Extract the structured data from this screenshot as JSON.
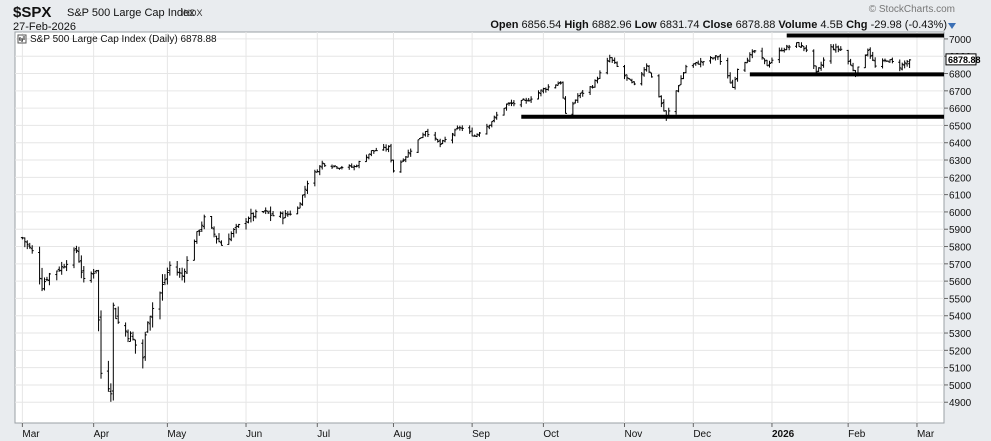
{
  "header": {
    "symbol": "$SPX",
    "name": "S&P 500 Large Cap Index",
    "exchange": "INDX",
    "date": "27-Feb-2026",
    "watermark": "© StockCharts.com",
    "open_label": "Open",
    "open": "6856.54",
    "high_label": "High",
    "high": "6882.96",
    "low_label": "Low",
    "low": "6831.74",
    "close_label": "Close",
    "close": "6878.88",
    "volume_label": "Volume",
    "volume": "4.5B",
    "chg_label": "Chg",
    "chg": "-29.98 (-0.43%)"
  },
  "colors": {
    "price_bar": "#000000",
    "grid": "#e6e6e6",
    "panel": "#ffffff",
    "page": "#e9ecef",
    "caret": "#3b6fb5"
  },
  "chart_data": {
    "type": "ohlc",
    "legend": "S&P 500 Large Cap Index (Daily) 6878.88",
    "last_price_label": "6878.88",
    "ylim": [
      4780,
      7040
    ],
    "y_ticks": [
      4900,
      5000,
      5100,
      5200,
      5300,
      5400,
      5500,
      5600,
      5700,
      5800,
      5900,
      6000,
      6100,
      6200,
      6300,
      6400,
      6500,
      6600,
      6700,
      6800,
      6900,
      7000
    ],
    "x_start": "2025-02-28",
    "x_end": "2026-03-13",
    "x_ticks": [
      {
        "label": "Mar",
        "date": "2025-03-03",
        "bold": false
      },
      {
        "label": "Apr",
        "date": "2025-04-01",
        "bold": false
      },
      {
        "label": "May",
        "date": "2025-05-01",
        "bold": false
      },
      {
        "label": "Jun",
        "date": "2025-06-02",
        "bold": false
      },
      {
        "label": "Jul",
        "date": "2025-07-01",
        "bold": false
      },
      {
        "label": "Aug",
        "date": "2025-08-01",
        "bold": false
      },
      {
        "label": "Sep",
        "date": "2025-09-02",
        "bold": false
      },
      {
        "label": "Oct",
        "date": "2025-10-01",
        "bold": false
      },
      {
        "label": "Nov",
        "date": "2025-11-03",
        "bold": false
      },
      {
        "label": "Dec",
        "date": "2025-12-01",
        "bold": false
      },
      {
        "label": "2026",
        "date": "2026-01-02",
        "bold": true
      },
      {
        "label": "Feb",
        "date": "2026-02-02",
        "bold": false
      },
      {
        "label": "Mar",
        "date": "2026-03-02",
        "bold": false
      }
    ],
    "closes": [
      [
        "2025-03-03",
        5850
      ],
      [
        "2025-03-07",
        5770
      ],
      [
        "2025-03-11",
        5580
      ],
      [
        "2025-03-14",
        5640
      ],
      [
        "2025-03-19",
        5680
      ],
      [
        "2025-03-25",
        5780
      ],
      [
        "2025-03-28",
        5600
      ],
      [
        "2025-04-02",
        5670
      ],
      [
        "2025-04-04",
        5070
      ],
      [
        "2025-04-08",
        4980
      ],
      [
        "2025-04-09",
        5450
      ],
      [
        "2025-04-11",
        5360
      ],
      [
        "2025-04-16",
        5280
      ],
      [
        "2025-04-21",
        5160
      ],
      [
        "2025-04-23",
        5390
      ],
      [
        "2025-04-28",
        5530
      ],
      [
        "2025-05-02",
        5690
      ],
      [
        "2025-05-07",
        5630
      ],
      [
        "2025-05-12",
        5840
      ],
      [
        "2025-05-16",
        5960
      ],
      [
        "2025-05-21",
        5850
      ],
      [
        "2025-05-23",
        5810
      ],
      [
        "2025-05-28",
        5890
      ],
      [
        "2025-06-03",
        5970
      ],
      [
        "2025-06-09",
        6000
      ],
      [
        "2025-06-13",
        5980
      ],
      [
        "2025-06-18",
        5980
      ],
      [
        "2025-06-23",
        6020
      ],
      [
        "2025-06-27",
        6170
      ],
      [
        "2025-07-03",
        6280
      ],
      [
        "2025-07-10",
        6260
      ],
      [
        "2025-07-16",
        6260
      ],
      [
        "2025-07-23",
        6350
      ],
      [
        "2025-07-30",
        6370
      ],
      [
        "2025-08-01",
        6240
      ],
      [
        "2025-08-07",
        6340
      ],
      [
        "2025-08-14",
        6470
      ],
      [
        "2025-08-20",
        6390
      ],
      [
        "2025-08-28",
        6490
      ],
      [
        "2025-09-03",
        6440
      ],
      [
        "2025-09-09",
        6510
      ],
      [
        "2025-09-16",
        6620
      ],
      [
        "2025-09-24",
        6640
      ],
      [
        "2025-10-01",
        6710
      ],
      [
        "2025-10-08",
        6750
      ],
      [
        "2025-10-10",
        6560
      ],
      [
        "2025-10-15",
        6670
      ],
      [
        "2025-10-21",
        6730
      ],
      [
        "2025-10-28",
        6890
      ],
      [
        "2025-11-04",
        6770
      ],
      [
        "2025-11-07",
        6730
      ],
      [
        "2025-11-12",
        6850
      ],
      [
        "2025-11-17",
        6670
      ],
      [
        "2025-11-20",
        6540
      ],
      [
        "2025-11-24",
        6700
      ],
      [
        "2025-11-28",
        6840
      ],
      [
        "2025-12-05",
        6870
      ],
      [
        "2025-12-11",
        6900
      ],
      [
        "2025-12-17",
        6720
      ],
      [
        "2025-12-19",
        6830
      ],
      [
        "2025-12-26",
        6930
      ],
      [
        "2025-12-31",
        6850
      ],
      [
        "2026-01-06",
        6940
      ],
      [
        "2026-01-12",
        6970
      ],
      [
        "2026-01-16",
        6940
      ],
      [
        "2026-01-20",
        6800
      ],
      [
        "2026-01-26",
        6950
      ],
      [
        "2026-01-30",
        6940
      ],
      [
        "2026-02-05",
        6800
      ],
      [
        "2026-02-10",
        6940
      ],
      [
        "2026-02-13",
        6840
      ],
      [
        "2026-02-18",
        6880
      ],
      [
        "2026-02-23",
        6840
      ],
      [
        "2026-02-27",
        6878.88
      ]
    ],
    "support_lines": [
      {
        "from": "2026-01-08",
        "to": "2026-03-13",
        "value": 7020
      },
      {
        "from": "2025-12-24",
        "to": "2026-03-13",
        "value": 6795
      },
      {
        "from": "2025-09-22",
        "to": "2026-03-13",
        "value": 6550
      }
    ]
  }
}
